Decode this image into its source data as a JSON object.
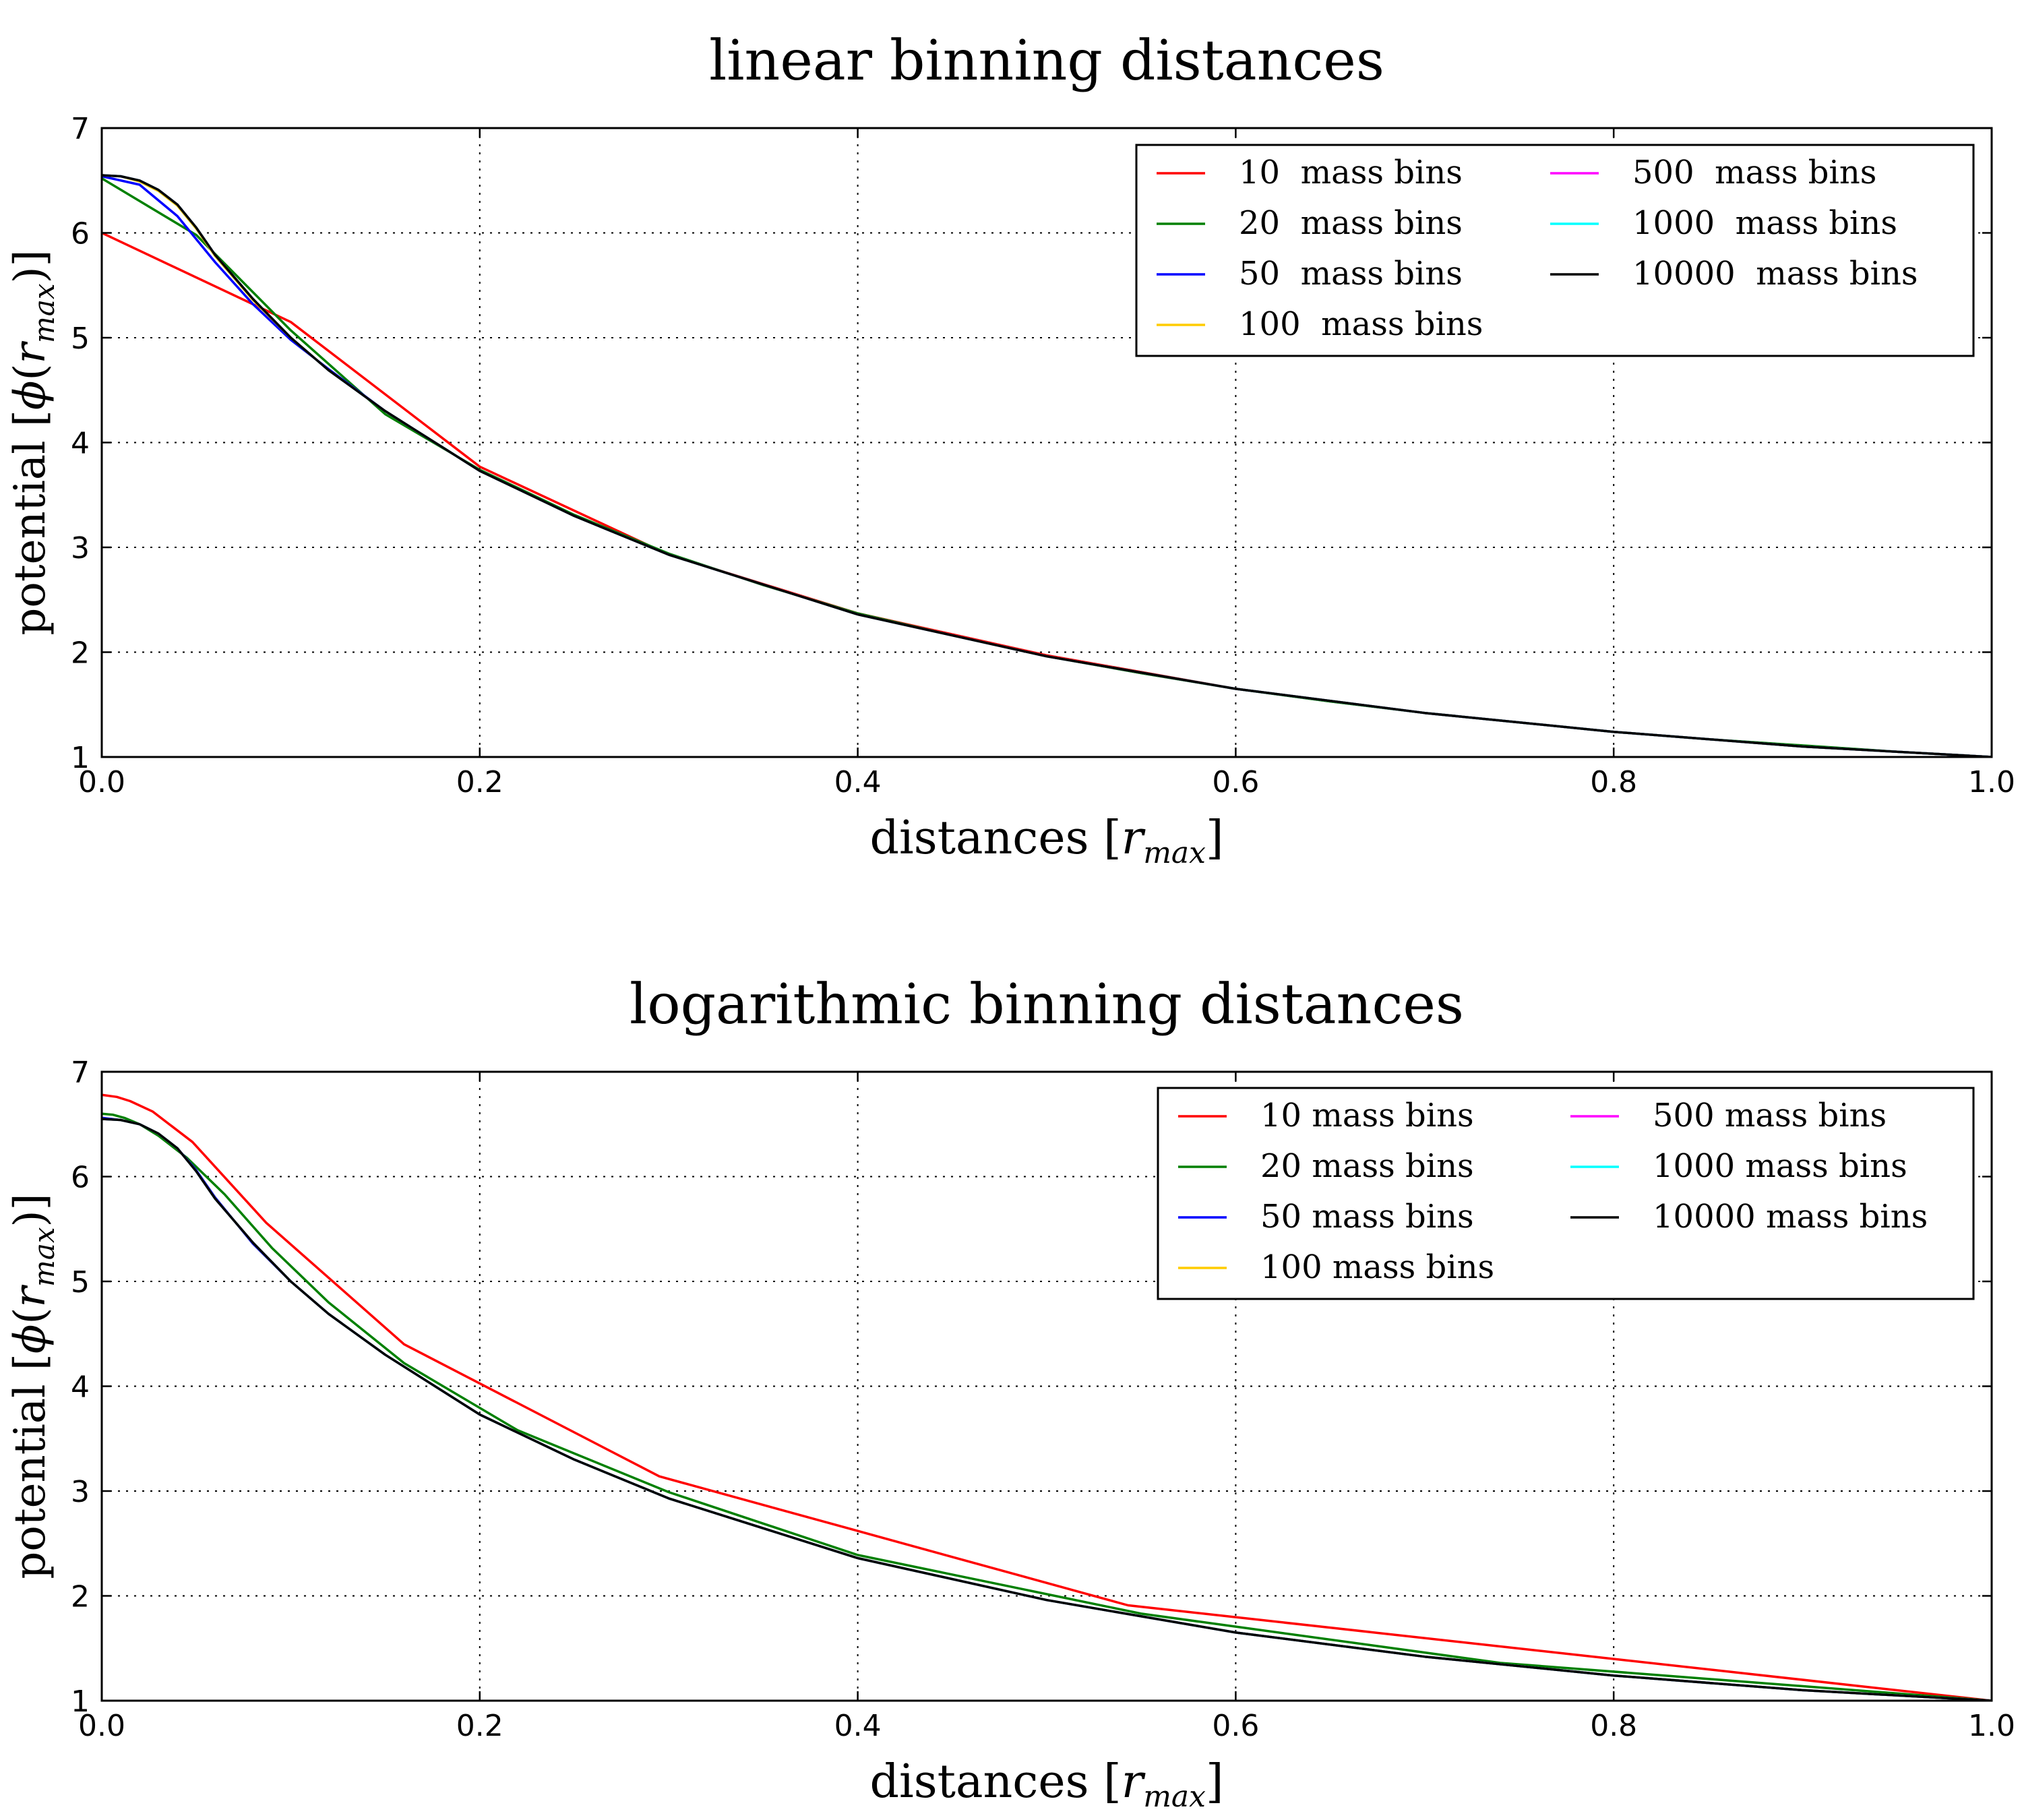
{
  "chart_data": [
    {
      "type": "line",
      "title": "linear binning distances",
      "xlabel": "distances",
      "xlabel_unit": "max",
      "ylabel": "potential",
      "ylabel_unit": "max",
      "xlim": [
        0.0,
        1.0
      ],
      "ylim": [
        1,
        7
      ],
      "xticks": [
        "0.0",
        "0.2",
        "0.4",
        "0.6",
        "0.8",
        "1.0"
      ],
      "yticks": [
        "1",
        "2",
        "3",
        "4",
        "5",
        "6",
        "7"
      ],
      "grid": true,
      "legend_placement": "top-right",
      "legend_columns": 2,
      "series": [
        {
          "name": "10  mass bins",
          "color": "#ff0000",
          "x": [
            0.0,
            0.1,
            0.2,
            0.3,
            0.4,
            0.5,
            0.6,
            0.7,
            0.8,
            0.9,
            1.0
          ],
          "y": [
            6.0,
            5.15,
            3.77,
            2.93,
            2.37,
            1.97,
            1.65,
            1.42,
            1.24,
            1.1,
            1.0
          ]
        },
        {
          "name": "20  mass bins",
          "color": "#008000",
          "x": [
            0.0,
            0.05,
            0.1,
            0.15,
            0.2,
            0.25,
            0.3,
            0.35,
            0.4,
            0.45,
            0.5,
            0.55,
            0.6,
            0.65,
            0.7,
            0.75,
            0.8,
            0.85,
            0.9,
            0.95,
            1.0
          ],
          "y": [
            6.52,
            5.98,
            5.07,
            4.27,
            3.74,
            3.31,
            2.94,
            2.64,
            2.37,
            2.16,
            1.96,
            1.8,
            1.65,
            1.53,
            1.42,
            1.33,
            1.24,
            1.17,
            1.11,
            1.05,
            1.0
          ]
        },
        {
          "name": "50  mass bins",
          "color": "#0000ff",
          "x": [
            0.0,
            0.02,
            0.04,
            0.06,
            0.08,
            0.1,
            0.12,
            0.15,
            0.2,
            0.25,
            0.3,
            0.4,
            0.5,
            0.6,
            0.7,
            0.8,
            0.9,
            1.0
          ],
          "y": [
            6.54,
            6.46,
            6.16,
            5.72,
            5.32,
            4.98,
            4.7,
            4.3,
            3.73,
            3.3,
            2.93,
            2.36,
            1.96,
            1.65,
            1.42,
            1.24,
            1.1,
            1.0
          ]
        },
        {
          "name": "100  mass bins",
          "color": "#ffcc00",
          "x": [
            0.0,
            0.01,
            0.02,
            0.03,
            0.04,
            0.05,
            0.06,
            0.08,
            0.1,
            0.12,
            0.15,
            0.2,
            0.25,
            0.3,
            0.4,
            0.5,
            0.6,
            0.7,
            0.8,
            0.9,
            1.0
          ],
          "y": [
            6.55,
            6.54,
            6.49,
            6.4,
            6.26,
            6.04,
            5.78,
            5.36,
            5.0,
            4.69,
            4.3,
            3.73,
            3.3,
            2.93,
            2.36,
            1.96,
            1.65,
            1.42,
            1.24,
            1.1,
            1.0
          ]
        },
        {
          "name": "500  mass bins",
          "color": "#ff00ff",
          "x": [
            0.0,
            0.01,
            0.02,
            0.03,
            0.04,
            0.05,
            0.06,
            0.08,
            0.1,
            0.12,
            0.15,
            0.2,
            0.25,
            0.3,
            0.4,
            0.5,
            0.6,
            0.7,
            0.8,
            0.9,
            1.0
          ],
          "y": [
            6.55,
            6.54,
            6.5,
            6.41,
            6.27,
            6.05,
            5.79,
            5.37,
            5.0,
            4.69,
            4.3,
            3.73,
            3.3,
            2.93,
            2.36,
            1.96,
            1.65,
            1.42,
            1.24,
            1.1,
            1.0
          ]
        },
        {
          "name": "1000  mass bins",
          "color": "#00ffff",
          "x": [
            0.0,
            0.01,
            0.02,
            0.03,
            0.04,
            0.05,
            0.06,
            0.08,
            0.1,
            0.12,
            0.15,
            0.2,
            0.25,
            0.3,
            0.4,
            0.5,
            0.6,
            0.7,
            0.8,
            0.9,
            1.0
          ],
          "y": [
            6.55,
            6.54,
            6.5,
            6.41,
            6.27,
            6.05,
            5.79,
            5.37,
            5.0,
            4.69,
            4.3,
            3.73,
            3.3,
            2.93,
            2.36,
            1.96,
            1.65,
            1.42,
            1.24,
            1.1,
            1.0
          ]
        },
        {
          "name": "10000  mass bins",
          "color": "#000000",
          "x": [
            0.0,
            0.01,
            0.02,
            0.03,
            0.04,
            0.05,
            0.06,
            0.08,
            0.1,
            0.12,
            0.15,
            0.2,
            0.25,
            0.3,
            0.4,
            0.5,
            0.6,
            0.7,
            0.8,
            0.9,
            1.0
          ],
          "y": [
            6.55,
            6.54,
            6.5,
            6.41,
            6.27,
            6.05,
            5.79,
            5.37,
            5.0,
            4.69,
            4.3,
            3.73,
            3.3,
            2.93,
            2.36,
            1.96,
            1.65,
            1.42,
            1.24,
            1.1,
            1.0
          ]
        }
      ]
    },
    {
      "type": "line",
      "title": "logarithmic binning distances",
      "xlabel": "distances",
      "xlabel_unit": "max",
      "ylabel": "potential",
      "ylabel_unit": "max",
      "xlim": [
        0.0,
        1.0
      ],
      "ylim": [
        1,
        7
      ],
      "xticks": [
        "0.0",
        "0.2",
        "0.4",
        "0.6",
        "0.8",
        "1.0"
      ],
      "yticks": [
        "1",
        "2",
        "3",
        "4",
        "5",
        "6",
        "7"
      ],
      "grid": true,
      "legend_placement": "top-right",
      "legend_columns": 2,
      "series": [
        {
          "name": "10 mass bins",
          "color": "#ff0000",
          "x": [
            0.0,
            0.008,
            0.015,
            0.027,
            0.048,
            0.087,
            0.16,
            0.295,
            0.543,
            1.0
          ],
          "y": [
            6.78,
            6.76,
            6.72,
            6.62,
            6.33,
            5.56,
            4.4,
            3.14,
            1.91,
            1.0
          ]
        },
        {
          "name": "20 mass bins",
          "color": "#008000",
          "x": [
            0.0,
            0.006,
            0.012,
            0.02,
            0.03,
            0.045,
            0.065,
            0.09,
            0.12,
            0.16,
            0.22,
            0.3,
            0.4,
            0.55,
            0.74,
            1.0
          ],
          "y": [
            6.6,
            6.59,
            6.56,
            6.5,
            6.39,
            6.18,
            5.83,
            5.32,
            4.8,
            4.22,
            3.58,
            2.99,
            2.39,
            1.83,
            1.36,
            1.0
          ]
        },
        {
          "name": "50 mass bins",
          "color": "#0000ff",
          "x": [
            0.0,
            0.01,
            0.02,
            0.03,
            0.04,
            0.05,
            0.06,
            0.08,
            0.1,
            0.12,
            0.15,
            0.2,
            0.25,
            0.3,
            0.4,
            0.5,
            0.6,
            0.7,
            0.8,
            0.9,
            1.0
          ],
          "y": [
            6.56,
            6.54,
            6.5,
            6.41,
            6.27,
            6.06,
            5.8,
            5.36,
            5.0,
            4.69,
            4.3,
            3.73,
            3.3,
            2.93,
            2.36,
            1.96,
            1.65,
            1.42,
            1.24,
            1.1,
            1.0
          ]
        },
        {
          "name": "100 mass bins",
          "color": "#ffcc00",
          "x": [
            0.0,
            0.01,
            0.02,
            0.03,
            0.04,
            0.05,
            0.06,
            0.08,
            0.1,
            0.12,
            0.15,
            0.2,
            0.25,
            0.3,
            0.4,
            0.5,
            0.6,
            0.7,
            0.8,
            0.9,
            1.0
          ],
          "y": [
            6.55,
            6.54,
            6.5,
            6.41,
            6.27,
            6.05,
            5.79,
            5.37,
            5.0,
            4.69,
            4.3,
            3.73,
            3.3,
            2.93,
            2.36,
            1.96,
            1.65,
            1.42,
            1.24,
            1.1,
            1.0
          ]
        },
        {
          "name": "500 mass bins",
          "color": "#ff00ff",
          "x": [
            0.0,
            0.01,
            0.02,
            0.03,
            0.04,
            0.05,
            0.06,
            0.08,
            0.1,
            0.12,
            0.15,
            0.2,
            0.25,
            0.3,
            0.4,
            0.5,
            0.6,
            0.7,
            0.8,
            0.9,
            1.0
          ],
          "y": [
            6.55,
            6.54,
            6.5,
            6.41,
            6.27,
            6.05,
            5.79,
            5.37,
            5.0,
            4.69,
            4.3,
            3.73,
            3.3,
            2.93,
            2.36,
            1.96,
            1.65,
            1.42,
            1.24,
            1.1,
            1.0
          ]
        },
        {
          "name": "1000 mass bins",
          "color": "#00ffff",
          "x": [
            0.0,
            0.01,
            0.02,
            0.03,
            0.04,
            0.05,
            0.06,
            0.08,
            0.1,
            0.12,
            0.15,
            0.2,
            0.25,
            0.3,
            0.4,
            0.5,
            0.6,
            0.7,
            0.8,
            0.9,
            1.0
          ],
          "y": [
            6.55,
            6.54,
            6.5,
            6.41,
            6.27,
            6.05,
            5.79,
            5.37,
            5.0,
            4.69,
            4.3,
            3.73,
            3.3,
            2.93,
            2.36,
            1.96,
            1.65,
            1.42,
            1.24,
            1.1,
            1.0
          ]
        },
        {
          "name": "10000 mass bins",
          "color": "#000000",
          "x": [
            0.0,
            0.01,
            0.02,
            0.03,
            0.04,
            0.05,
            0.06,
            0.08,
            0.1,
            0.12,
            0.15,
            0.2,
            0.25,
            0.3,
            0.4,
            0.5,
            0.6,
            0.7,
            0.8,
            0.9,
            1.0
          ],
          "y": [
            6.55,
            6.54,
            6.5,
            6.41,
            6.27,
            6.05,
            5.79,
            5.37,
            5.0,
            4.69,
            4.3,
            3.73,
            3.3,
            2.93,
            2.36,
            1.96,
            1.65,
            1.42,
            1.24,
            1.1,
            1.0
          ]
        }
      ]
    }
  ]
}
